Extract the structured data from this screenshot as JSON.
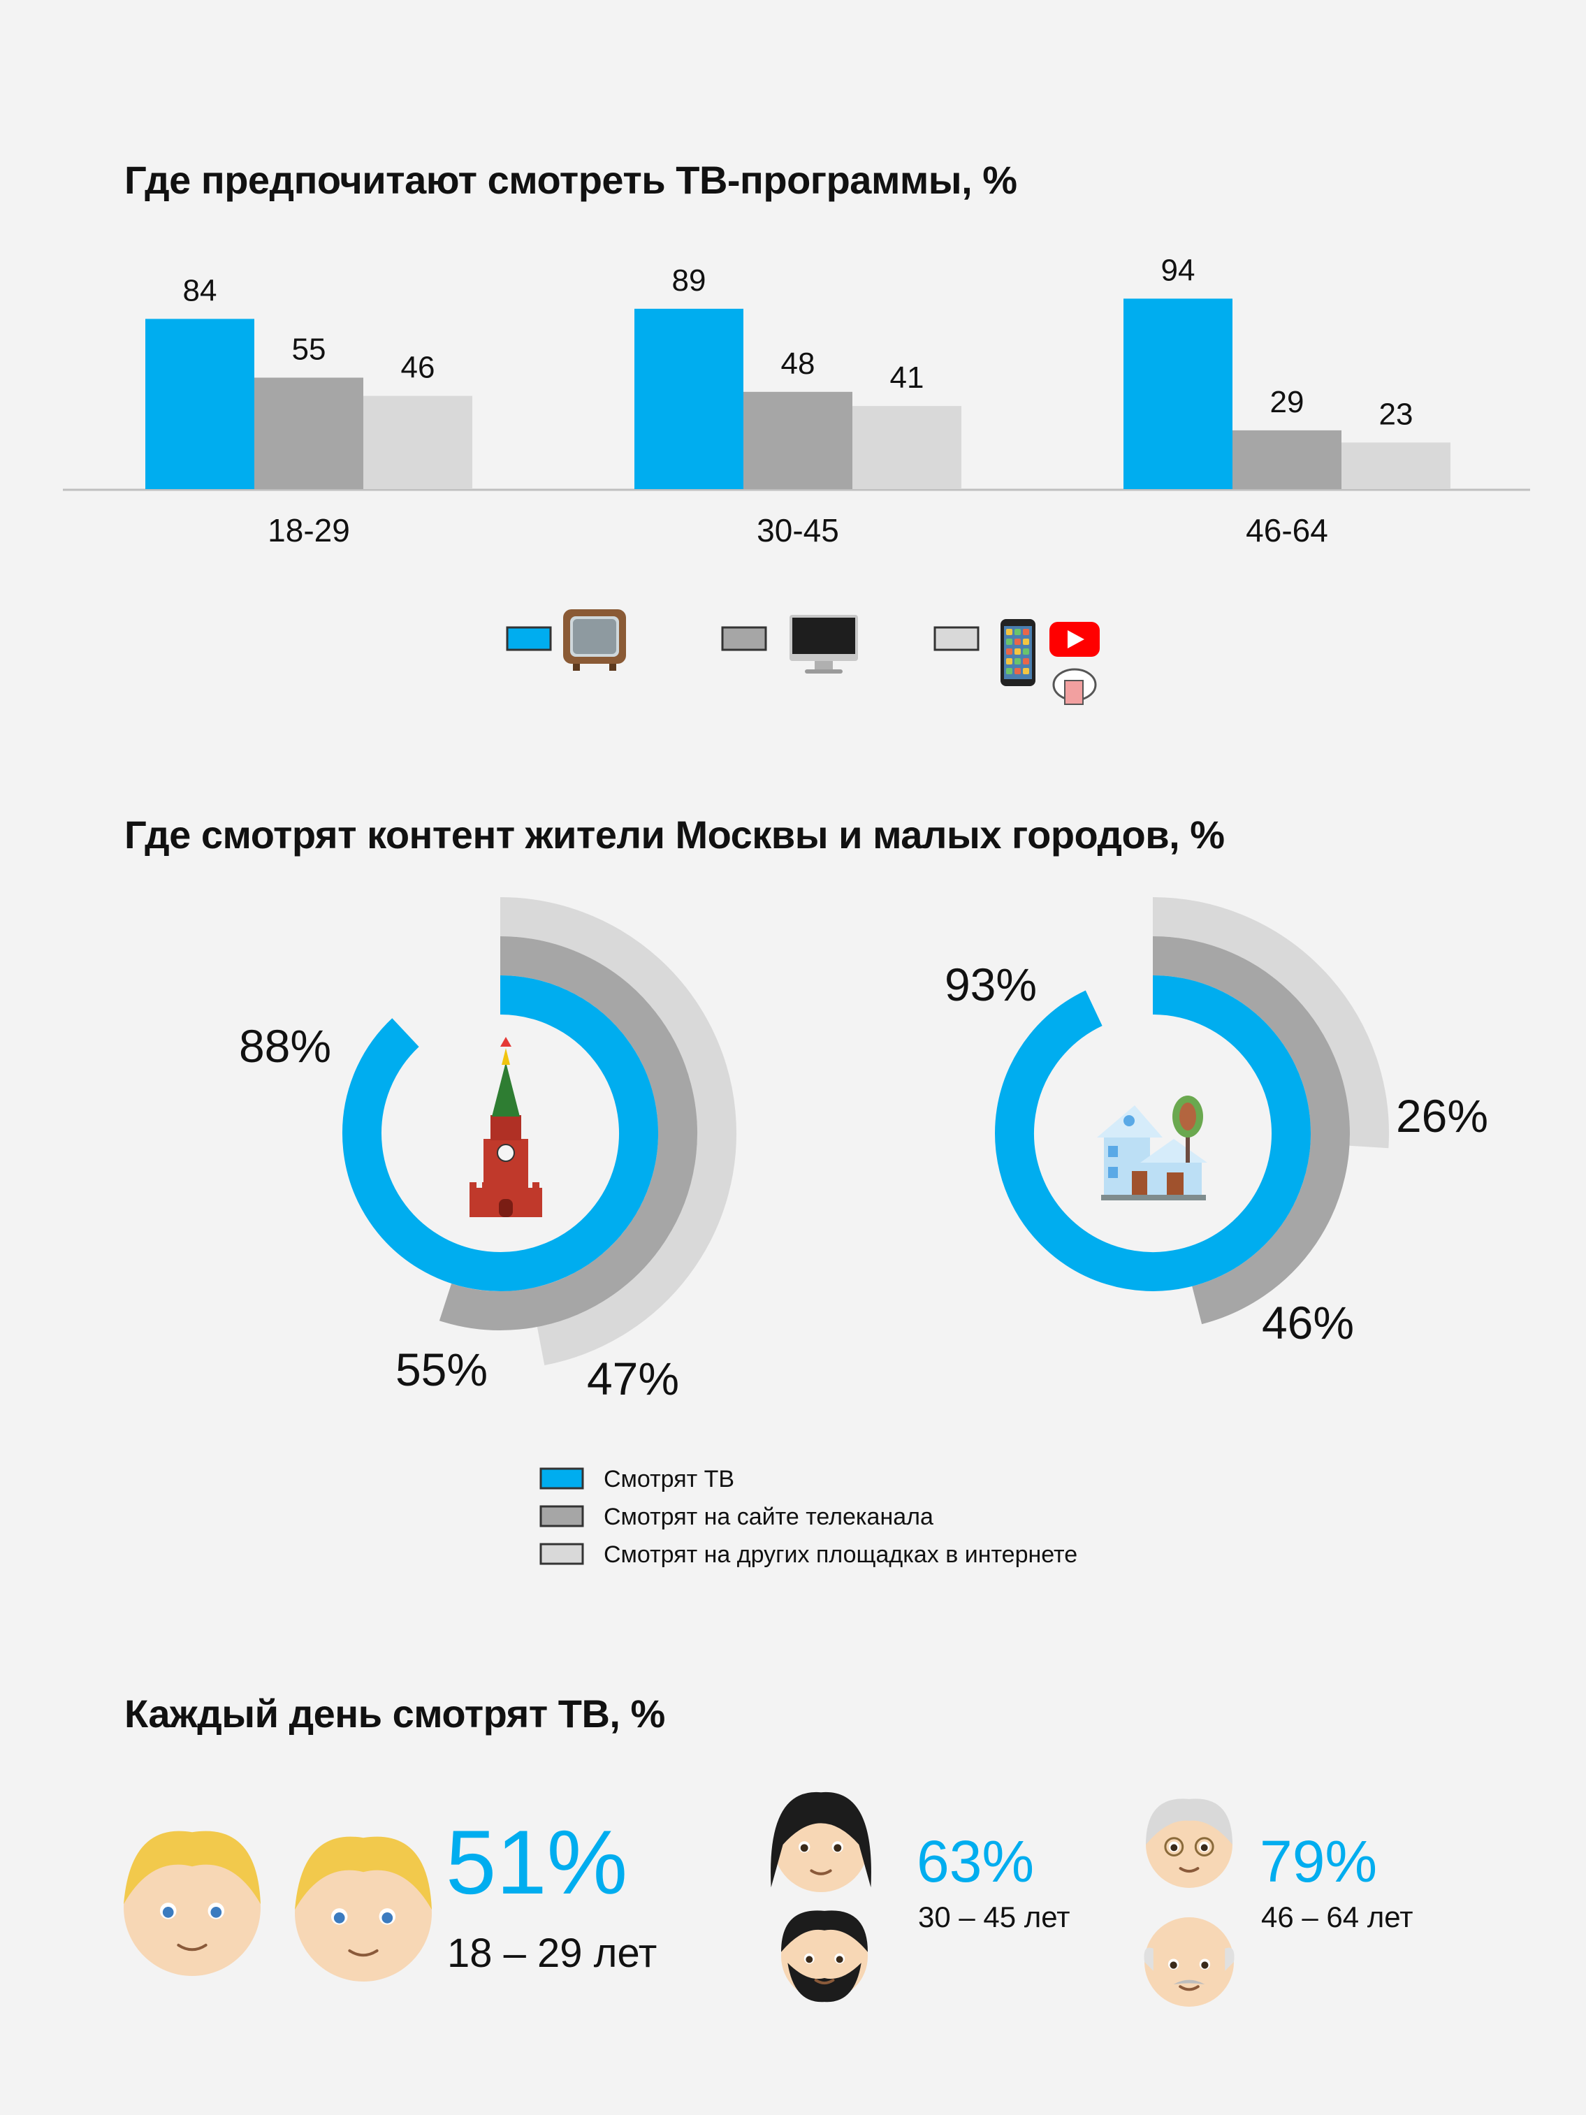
{
  "chart_data": [
    {
      "type": "bar",
      "title": "Где предпочитают смотреть ТВ-программы, %",
      "categories": [
        "18-29",
        "30-45",
        "46-64"
      ],
      "series": [
        {
          "values": [
            84,
            89,
            94
          ],
          "color": "#00adef",
          "icon": "tv-icon"
        },
        {
          "values": [
            55,
            48,
            29
          ],
          "color": "#a6a6a6",
          "icon": "desktop-computer-icon"
        },
        {
          "values": [
            46,
            41,
            23
          ],
          "color": "#d9d9d9",
          "icon": "smartphone-youtube-cloud-icon"
        }
      ],
      "ylim": [
        0,
        100
      ],
      "legend_position": "bottom"
    },
    {
      "type": "radial-bar",
      "title": "Где смотрят контент жители Москвы и малых городов, %",
      "groups": [
        {
          "icon": "kremlin-tower-icon",
          "values": [
            88,
            55,
            47
          ],
          "labels": [
            "88%",
            "55%",
            "47%"
          ]
        },
        {
          "icon": "small-town-houses-icon",
          "values": [
            93,
            46,
            26
          ],
          "labels": [
            "93%",
            "46%",
            "26%"
          ]
        }
      ],
      "series": [
        {
          "name": "Смотрят ТВ",
          "color": "#00adef"
        },
        {
          "name": "Смотрят на сайте телеканала",
          "color": "#a6a6a6"
        },
        {
          "name": "Смотрят на других  площадках в интернете",
          "color": "#d9d9d9"
        }
      ],
      "legend_position": "bottom"
    },
    {
      "type": "table",
      "title": "Каждый день смотрят ТВ, %",
      "groups": [
        {
          "value": "51%",
          "label": "18 – 29 лет",
          "icons": [
            "young-man-face-icon",
            "young-woman-face-icon"
          ]
        },
        {
          "value": "63%",
          "label": "30 – 45 лет",
          "icons": [
            "woman-face-icon",
            "bearded-man-face-icon"
          ]
        },
        {
          "value": "79%",
          "label": "46 – 64 лет",
          "icons": [
            "older-woman-face-icon",
            "older-man-face-icon"
          ]
        }
      ],
      "accent_color": "#00adef"
    }
  ]
}
